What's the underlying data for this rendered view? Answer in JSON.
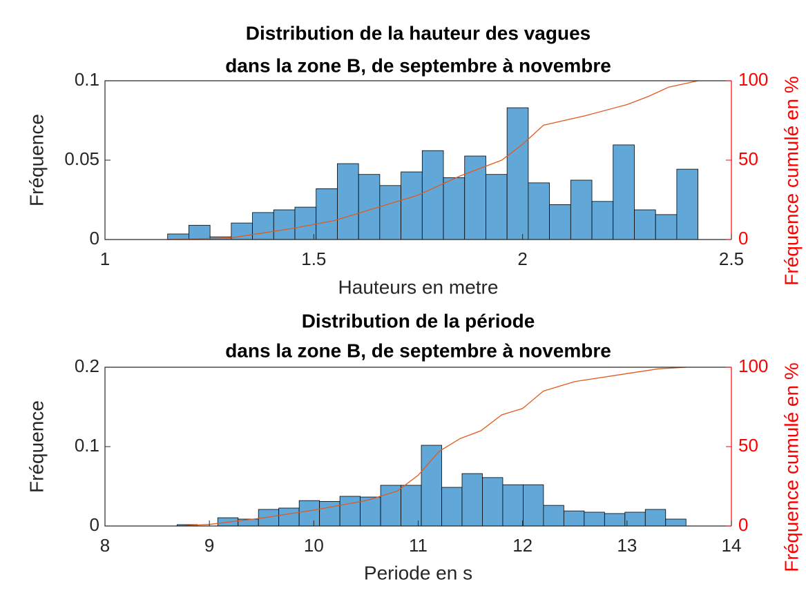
{
  "chart_data": [
    {
      "type": "histogram",
      "title": [
        "Distribution de la hauteur des vagues",
        "dans la zone B, de septembre à novembre"
      ],
      "xlabel": "Hauteurs en metre",
      "ylabel": "Fréquence",
      "y2label": "Fréquence cumulé en %",
      "bins": [
        1.15,
        1.2008,
        1.2516,
        1.3024,
        1.3532,
        1.404,
        1.4548,
        1.5056,
        1.5564,
        1.6072,
        1.658,
        1.7088,
        1.7596,
        1.8104,
        1.8612,
        1.912,
        1.9628,
        2.0136,
        2.0644,
        2.1152,
        2.166,
        2.2168,
        2.2676,
        2.3184,
        2.3692,
        2.42
      ],
      "values": [
        0.0035,
        0.009,
        0.0017,
        0.0104,
        0.017,
        0.0187,
        0.0204,
        0.032,
        0.0478,
        0.041,
        0.034,
        0.0426,
        0.056,
        0.039,
        0.0526,
        0.041,
        0.083,
        0.0357,
        0.022,
        0.0374,
        0.024,
        0.0596,
        0.0187,
        0.0157,
        0.0443
      ],
      "color": "#61a8d8",
      "series": [
        {
          "color": "#e05a1e",
          "axis": "y2",
          "x": [
            1.15,
            1.3,
            1.45,
            1.55,
            1.65,
            1.75,
            1.85,
            1.95,
            2.0,
            2.05,
            2.15,
            2.25,
            2.3,
            2.35,
            2.42
          ],
          "values": [
            0,
            1,
            7,
            12,
            20,
            28,
            40,
            50,
            60,
            72,
            78,
            85,
            90,
            96,
            100
          ]
        }
      ],
      "xlim": [
        1,
        2.5
      ],
      "xticks": [
        1,
        1.5,
        2,
        2.5
      ],
      "ylim": [
        0,
        0.1
      ],
      "yticks": [
        0,
        0.05,
        0.1
      ],
      "y2lim": [
        0,
        100
      ],
      "y2ticks": [
        0,
        50,
        100
      ],
      "y2color": "#ff0000"
    },
    {
      "type": "histogram",
      "title": [
        "Distribution de la période",
        "dans la zone B, de septembre à novembre"
      ],
      "xlabel": "Periode en s",
      "ylabel": "Fréquence",
      "y2label": "Fréquence cumulé en %",
      "bins": [
        8.69,
        8.885,
        9.08,
        9.275,
        9.47,
        9.665,
        9.86,
        10.055,
        10.25,
        10.445,
        10.64,
        10.835,
        11.03,
        11.225,
        11.42,
        11.615,
        11.81,
        12.005,
        12.2,
        12.395,
        12.59,
        12.785,
        12.98,
        13.175,
        13.37,
        13.565
      ],
      "values": [
        0.0017,
        0,
        0.0104,
        0.0087,
        0.0209,
        0.0226,
        0.032,
        0.031,
        0.0374,
        0.0365,
        0.0513,
        0.0513,
        0.1017,
        0.0487,
        0.066,
        0.061,
        0.052,
        0.052,
        0.026,
        0.019,
        0.0174,
        0.0157,
        0.0174,
        0.0209,
        0.0087
      ],
      "color": "#61a8d8",
      "series": [
        {
          "color": "#e05a1e",
          "axis": "y2",
          "x": [
            8.69,
            9.0,
            9.5,
            10.0,
            10.5,
            10.8,
            11.0,
            11.2,
            11.4,
            11.6,
            11.8,
            12.0,
            12.2,
            12.5,
            13.0,
            13.3,
            13.565
          ],
          "values": [
            0,
            1,
            5,
            10,
            16,
            22,
            32,
            47,
            55,
            60,
            70,
            74,
            85,
            91,
            96,
            99,
            100
          ]
        }
      ],
      "xlim": [
        8,
        14
      ],
      "xticks": [
        8,
        9,
        10,
        11,
        12,
        13,
        14
      ],
      "ylim": [
        0,
        0.2
      ],
      "yticks": [
        0,
        0.1,
        0.2
      ],
      "y2lim": [
        0,
        100
      ],
      "y2ticks": [
        0,
        50,
        100
      ],
      "y2color": "#ff0000"
    }
  ]
}
